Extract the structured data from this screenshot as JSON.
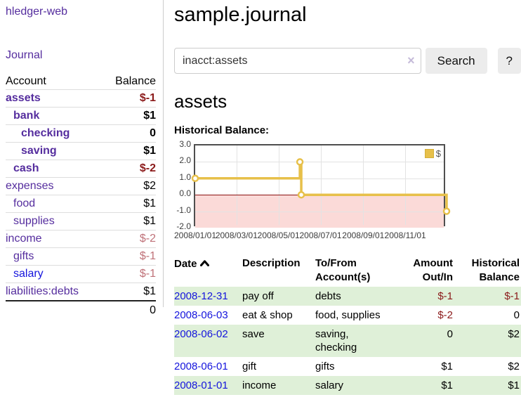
{
  "brand": "hledger-web",
  "nav": {
    "journal_label": "Journal"
  },
  "sidebar_table": {
    "headers": [
      "Account",
      "Balance"
    ],
    "rows": [
      {
        "account": "assets",
        "balance": "$-1",
        "depth": 1,
        "bold": true,
        "balance_style": "neg"
      },
      {
        "account": "bank",
        "balance": "$1",
        "depth": 2,
        "bold": true,
        "balance_style": "pos"
      },
      {
        "account": "checking",
        "balance": "0",
        "depth": 3,
        "bold": true,
        "balance_style": "pos"
      },
      {
        "account": "saving",
        "balance": "$1",
        "depth": 3,
        "bold": true,
        "balance_style": "pos"
      },
      {
        "account": "cash",
        "balance": "$-2",
        "depth": 2,
        "bold": true,
        "balance_style": "neg"
      },
      {
        "account": "expenses",
        "balance": "$2",
        "depth": 1,
        "bold": false,
        "balance_style": "pos"
      },
      {
        "account": "food",
        "balance": "$1",
        "depth": 2,
        "bold": false,
        "balance_style": "pos"
      },
      {
        "account": "supplies",
        "balance": "$1",
        "depth": 2,
        "bold": false,
        "balance_style": "pos"
      },
      {
        "account": "income",
        "balance": "$-2",
        "depth": 1,
        "bold": false,
        "balance_style": "neg-faded"
      },
      {
        "account": "gifts",
        "balance": "$-1",
        "depth": 2,
        "bold": false,
        "balance_style": "neg-faded"
      },
      {
        "account": "salary",
        "balance": "$-1",
        "depth": 2,
        "bold": false,
        "balance_style": "neg-faded",
        "link_style": "blue"
      },
      {
        "account": "liabilities:debts",
        "balance": "$1",
        "depth": 1,
        "bold": false,
        "balance_style": "pos"
      }
    ],
    "total": "0"
  },
  "main": {
    "title": "sample.journal",
    "search": {
      "value": "inacct:assets",
      "clear_icon": "×",
      "button_label": "Search",
      "help_label": "?"
    },
    "account_heading": "assets",
    "chart_label": "Historical Balance:"
  },
  "chart_data": {
    "type": "line",
    "step": true,
    "title": "Historical Balance",
    "series": [
      {
        "name": "$",
        "color": "#e7c04a",
        "points": [
          [
            "2008-01-01",
            1
          ],
          [
            "2008-06-01",
            2
          ],
          [
            "2008-06-03",
            0
          ],
          [
            "2008-12-31",
            -1
          ]
        ]
      }
    ],
    "x_domain": [
      "2008-01-01",
      "2008-12-31"
    ],
    "ylim": [
      -2,
      3
    ],
    "yticks": [
      "3.0",
      "2.0",
      "1.0",
      "0.0",
      "-1.0",
      "-2.0"
    ],
    "xticks": [
      "2008/01/01",
      "2008/03/01",
      "2008/05/01",
      "2008/07/01",
      "2008/09/01",
      "2008/11/01"
    ],
    "legend": "$",
    "legend_position": "top-right",
    "grid": true,
    "negative_region_color": "#fbdad8",
    "zero_line_color": "#8b1212"
  },
  "register_table": {
    "headers": {
      "date": "Date",
      "sort_icon": "chevron-up-icon",
      "description": "Description",
      "tofrom": "To/From\nAccount(s)",
      "amount": "Amount\nOut/In",
      "balance": "Historical\nBalance"
    },
    "rows": [
      {
        "date": "2008-12-31",
        "description": "pay off",
        "accounts": "debts",
        "amount": "$-1",
        "balance": "$-1",
        "striped": true
      },
      {
        "date": "2008-06-03",
        "description": "eat & shop",
        "accounts": "food, supplies",
        "amount": "$-2",
        "balance": "0",
        "striped": false
      },
      {
        "date": "2008-06-02",
        "description": "save",
        "accounts": "saving,\nchecking",
        "amount": "0",
        "balance": "$2",
        "striped": true
      },
      {
        "date": "2008-06-01",
        "description": "gift",
        "accounts": "gifts",
        "amount": "$1",
        "balance": "$2",
        "striped": false
      },
      {
        "date": "2008-01-01",
        "description": "income",
        "accounts": "salary",
        "amount": "$1",
        "balance": "$1",
        "striped": true
      }
    ]
  },
  "colors": {
    "link_purple": "#552d9e",
    "link_blue": "#1414dd",
    "negative_red": "#8b1a1a",
    "negative_faded": "#bf7178",
    "row_stripe_green": "#dff0d8",
    "series_gold": "#e7c04a"
  }
}
